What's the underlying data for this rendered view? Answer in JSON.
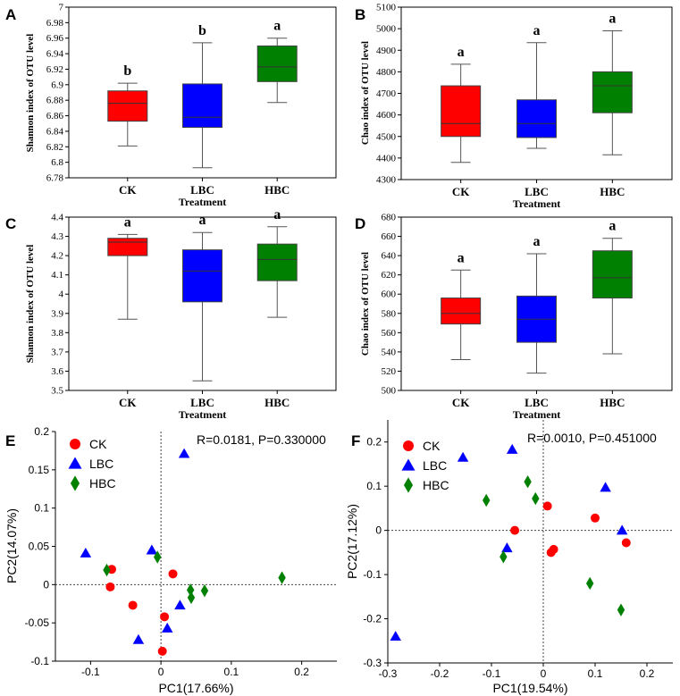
{
  "chart_data": [
    {
      "type": "box",
      "panel": "A",
      "ylabel": "Shannon index of OTU level",
      "xlabel": "Treatment",
      "ylim": [
        6.78,
        7.0
      ],
      "yticks": [
        "6.78",
        "6.8",
        "6.82",
        "6.84",
        "6.86",
        "6.88",
        "6.9",
        "6.92",
        "6.94",
        "6.96",
        "6.98",
        "7"
      ],
      "categories": [
        "CK",
        "LBC",
        "HBC"
      ],
      "boxes": [
        {
          "min": 6.821,
          "q1": 6.853,
          "median": 6.876,
          "q3": 6.892,
          "max": 6.902,
          "color": "#ff0000",
          "letter": "b"
        },
        {
          "min": 6.793,
          "q1": 6.845,
          "median": 6.858,
          "q3": 6.901,
          "max": 6.954,
          "color": "#0000ff",
          "letter": "b"
        },
        {
          "min": 6.877,
          "q1": 6.904,
          "median": 6.923,
          "q3": 6.95,
          "max": 6.96,
          "color": "#008000",
          "letter": "a"
        }
      ]
    },
    {
      "type": "box",
      "panel": "B",
      "ylabel": "Chao index of OTU level",
      "xlabel": "Treatment",
      "ylim": [
        4300,
        5100
      ],
      "yticks": [
        "4300",
        "4400",
        "4500",
        "4600",
        "4700",
        "4800",
        "4900",
        "5000",
        "5100"
      ],
      "categories": [
        "CK",
        "LBC",
        "HBC"
      ],
      "boxes": [
        {
          "min": 4380,
          "q1": 4500,
          "median": 4560,
          "q3": 4735,
          "max": 4835,
          "color": "#ff0000",
          "letter": "a"
        },
        {
          "min": 4445,
          "q1": 4495,
          "median": 4560,
          "q3": 4670,
          "max": 4935,
          "color": "#0000ff",
          "letter": "a"
        },
        {
          "min": 4415,
          "q1": 4610,
          "median": 4735,
          "q3": 4800,
          "max": 4990,
          "color": "#008000",
          "letter": "a"
        }
      ]
    },
    {
      "type": "box",
      "panel": "C",
      "ylabel": "Shannon index of OTU level",
      "xlabel": "Treatment",
      "ylim": [
        3.5,
        4.4
      ],
      "yticks": [
        "3.5",
        "3.6",
        "3.7",
        "3.8",
        "3.9",
        "4",
        "4.1",
        "4.2",
        "4.3",
        "4.4"
      ],
      "categories": [
        "CK",
        "LBC",
        "HBC"
      ],
      "boxes": [
        {
          "min": 3.87,
          "q1": 4.2,
          "median": 4.27,
          "q3": 4.29,
          "max": 4.31,
          "color": "#ff0000",
          "letter": "a"
        },
        {
          "min": 3.55,
          "q1": 3.96,
          "median": 4.12,
          "q3": 4.23,
          "max": 4.32,
          "color": "#0000ff",
          "letter": "a"
        },
        {
          "min": 3.88,
          "q1": 4.07,
          "median": 4.18,
          "q3": 4.26,
          "max": 4.35,
          "color": "#008000",
          "letter": "a"
        }
      ]
    },
    {
      "type": "box",
      "panel": "D",
      "ylabel": "Chao index of OTU level",
      "xlabel": "Treatment",
      "ylim": [
        500,
        680
      ],
      "yticks": [
        "500",
        "520",
        "540",
        "560",
        "580",
        "600",
        "620",
        "640",
        "660",
        "680"
      ],
      "categories": [
        "CK",
        "LBC",
        "HBC"
      ],
      "boxes": [
        {
          "min": 532,
          "q1": 569,
          "median": 580,
          "q3": 596,
          "max": 625,
          "color": "#ff0000",
          "letter": "a"
        },
        {
          "min": 518,
          "q1": 550,
          "median": 574,
          "q3": 598,
          "max": 642,
          "color": "#0000ff",
          "letter": "a"
        },
        {
          "min": 538,
          "q1": 596,
          "median": 617,
          "q3": 645,
          "max": 658,
          "color": "#008000",
          "letter": "a"
        }
      ]
    },
    {
      "type": "scatter",
      "panel": "E",
      "xlabel": "PC1(17.66%)",
      "ylabel": "PC2(14.07%)",
      "xlim": [
        -0.15,
        0.25
      ],
      "ylim": [
        -0.1,
        0.2
      ],
      "xticks": [
        "-0.1",
        "0",
        "0.1",
        "0.2"
      ],
      "yticks": [
        "-0.1",
        "-0.05",
        "0",
        "0.05",
        "0.1",
        "0.15",
        "0.2"
      ],
      "annotation": "R=0.0181, P=0.330000",
      "series": [
        {
          "name": "CK",
          "marker": "circle",
          "color": "#ff0000",
          "points": [
            [
              -0.07,
              0.02
            ],
            [
              -0.072,
              -0.003
            ],
            [
              -0.04,
              -0.027
            ],
            [
              0.017,
              0.014
            ],
            [
              0.005,
              -0.042
            ],
            [
              0.002,
              -0.087
            ]
          ]
        },
        {
          "name": "LBC",
          "marker": "triangle",
          "color": "#0000ff",
          "points": [
            [
              -0.107,
              0.041
            ],
            [
              -0.032,
              -0.072
            ],
            [
              -0.013,
              0.045
            ],
            [
              0.033,
              0.171
            ],
            [
              0.027,
              -0.027
            ],
            [
              0.009,
              -0.057
            ]
          ]
        },
        {
          "name": "HBC",
          "marker": "diamond",
          "color": "#008000",
          "points": [
            [
              -0.077,
              0.019
            ],
            [
              -0.005,
              0.036
            ],
            [
              0.042,
              -0.007
            ],
            [
              0.043,
              -0.017
            ],
            [
              0.062,
              -0.008
            ],
            [
              0.172,
              0.009
            ]
          ]
        }
      ]
    },
    {
      "type": "scatter",
      "panel": "F",
      "xlabel": "PC1(19.54%)",
      "ylabel": "PC2(17.12%)",
      "xlim": [
        -0.3,
        0.25
      ],
      "ylim": [
        -0.3,
        0.25
      ],
      "xticks": [
        "-0.3",
        "-0.2",
        "-0.1",
        "0",
        "0.1",
        "0.2"
      ],
      "yticks": [
        "-0.3",
        "-0.2",
        "-0.1",
        "0",
        "0.1",
        "0.2"
      ],
      "annotation": "R=0.0010, P=0.451000",
      "series": [
        {
          "name": "CK",
          "marker": "circle",
          "color": "#ff0000",
          "points": [
            [
              -0.055,
              0.0
            ],
            [
              0.008,
              0.055
            ],
            [
              0.015,
              -0.05
            ],
            [
              0.02,
              -0.043
            ],
            [
              0.1,
              0.028
            ],
            [
              0.16,
              -0.028
            ]
          ]
        },
        {
          "name": "LBC",
          "marker": "triangle",
          "color": "#0000ff",
          "points": [
            [
              -0.285,
              -0.24
            ],
            [
              -0.155,
              0.165
            ],
            [
              -0.06,
              0.183
            ],
            [
              -0.07,
              -0.04
            ],
            [
              0.12,
              0.097
            ],
            [
              0.152,
              0.0
            ]
          ]
        },
        {
          "name": "HBC",
          "marker": "diamond",
          "color": "#008000",
          "points": [
            [
              -0.11,
              0.068
            ],
            [
              -0.077,
              -0.06
            ],
            [
              -0.03,
              0.11
            ],
            [
              -0.015,
              0.072
            ],
            [
              0.09,
              -0.12
            ],
            [
              0.15,
              -0.18
            ]
          ]
        }
      ]
    }
  ]
}
